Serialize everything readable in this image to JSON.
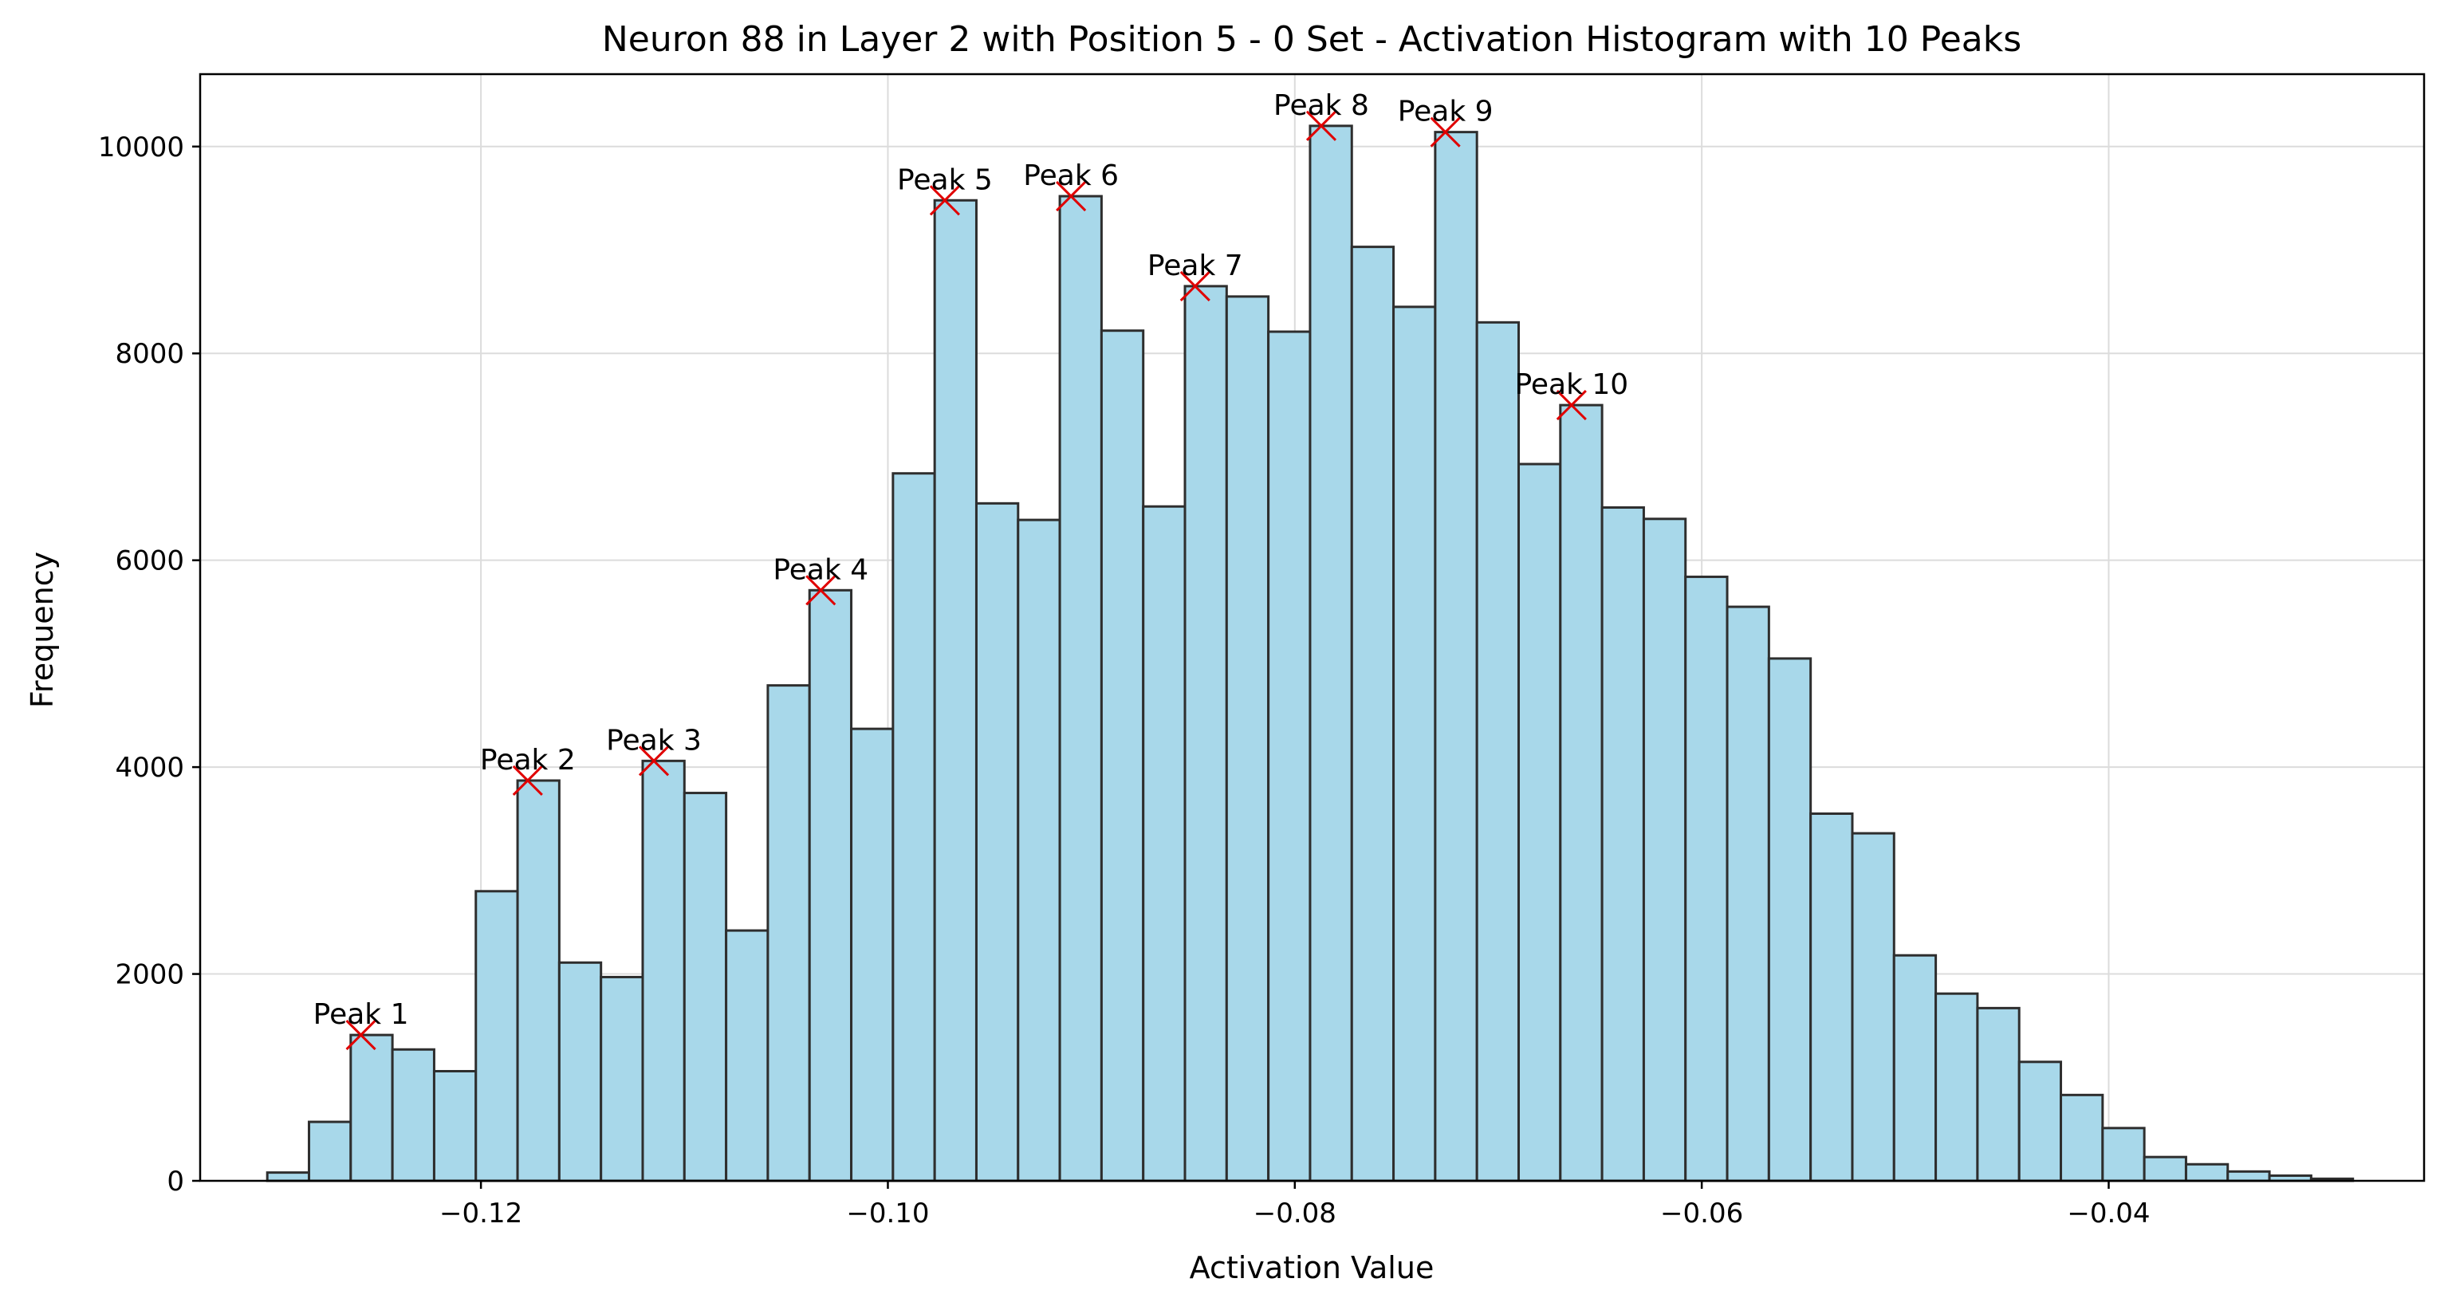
{
  "chart_data": {
    "type": "bar",
    "title": "Neuron 88 in Layer 2 with Position 5 - 0 Set - Activation Histogram with 10 Peaks",
    "xlabel": "Activation Value",
    "ylabel": "Frequency",
    "xlim": [
      -0.1338,
      -0.0245
    ],
    "ylim": [
      0,
      10700
    ],
    "grid": true,
    "bar_color": "#a8d8ea",
    "edge_color": "#2e2e2e",
    "marker_color": "#e00000",
    "bin_start": -0.1305,
    "bin_width": 0.00205,
    "values": [
      80,
      570,
      1410,
      1270,
      1060,
      2800,
      3870,
      2110,
      1970,
      4060,
      3750,
      2420,
      4790,
      5710,
      4370,
      6840,
      9480,
      6550,
      6390,
      9520,
      8220,
      6520,
      8650,
      8550,
      8210,
      10200,
      9030,
      8450,
      10140,
      8300,
      6930,
      7500,
      6510,
      6400,
      5840,
      5550,
      5050,
      3550,
      3360,
      2180,
      1810,
      1670,
      1150,
      830,
      510,
      230,
      160,
      90,
      50,
      20
    ],
    "x_ticks": [
      -0.12,
      -0.1,
      -0.08,
      -0.06,
      -0.04
    ],
    "x_tick_labels": [
      "−0.12",
      "−0.10",
      "−0.08",
      "−0.06",
      "−0.04"
    ],
    "y_ticks": [
      0,
      2000,
      4000,
      6000,
      8000,
      10000
    ],
    "y_tick_labels": [
      "0",
      "2000",
      "4000",
      "6000",
      "8000",
      "10000"
    ],
    "peaks": [
      {
        "label": "Peak 1",
        "x": -0.1259,
        "y": 1410
      },
      {
        "label": "Peak 2",
        "x": -0.1177,
        "y": 3870
      },
      {
        "label": "Peak 3",
        "x": -0.1115,
        "y": 4060
      },
      {
        "label": "Peak 4",
        "x": -0.1033,
        "y": 5710
      },
      {
        "label": "Peak 5",
        "x": -0.0972,
        "y": 9480
      },
      {
        "label": "Peak 6",
        "x": -0.091,
        "y": 9520
      },
      {
        "label": "Peak 7",
        "x": -0.0849,
        "y": 8650
      },
      {
        "label": "Peak 8",
        "x": -0.0787,
        "y": 10200
      },
      {
        "label": "Peak 9",
        "x": -0.0726,
        "y": 10140
      },
      {
        "label": "Peak 10",
        "x": -0.0664,
        "y": 7500
      }
    ]
  }
}
